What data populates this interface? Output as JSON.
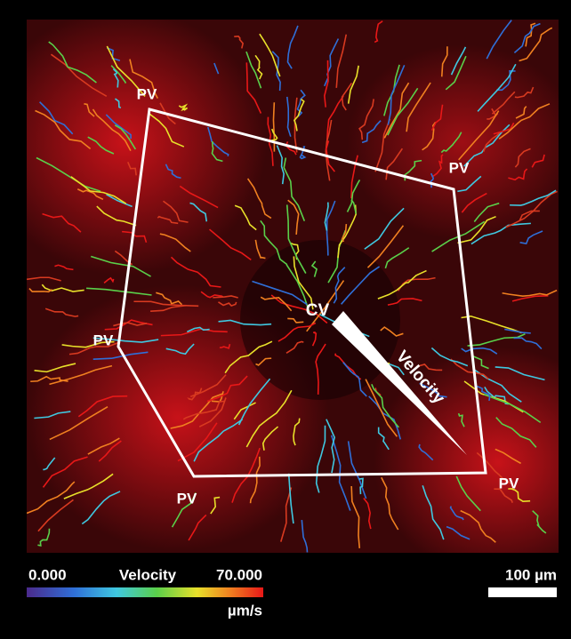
{
  "region_labels": [
    "PV",
    "PV",
    "PV",
    "PV",
    "PV",
    "CV"
  ],
  "arrow_label": "Velocity",
  "colorbar": {
    "min": "0.000",
    "title": "Velocity",
    "max": "70.000",
    "unit": "µm/s"
  },
  "scale_bar": "100 µm"
}
